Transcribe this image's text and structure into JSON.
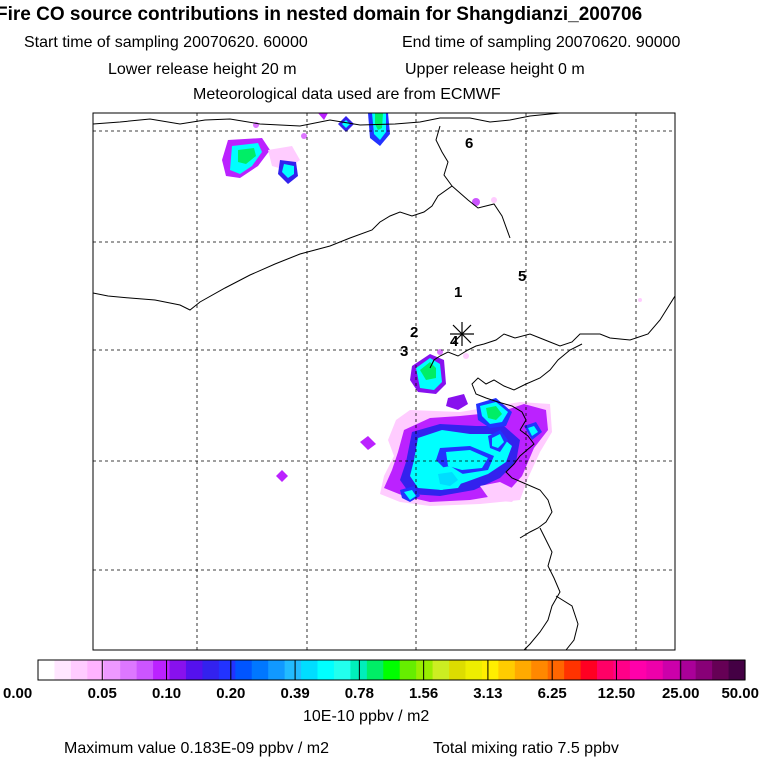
{
  "header": {
    "title": "Fire CO source contributions in nested domain for Shangdianzi_200706",
    "start_sampling": "Start time of sampling 20070620. 60000",
    "end_sampling": "End time of sampling 20070620. 90000",
    "lower_release": "Lower release height   20 m",
    "upper_release": "Upper release height    0 m",
    "met_data": "Meteorological data used are from ECMWF"
  },
  "colors": {
    "frame": "#000000",
    "grid": "#000000",
    "coast": "#000000"
  },
  "chart_data": {
    "type": "heatmap",
    "title": "Fire CO source contributions in nested domain for Shangdianzi_200706",
    "units": "10E-10 ppbv / m2",
    "legend_ticks": [
      "0.00",
      "0.05",
      "0.10",
      "0.20",
      "0.39",
      "0.78",
      "1.56",
      "3.13",
      "6.25",
      "12.50",
      "25.00",
      "50.00"
    ],
    "legend_colors": [
      "#ffffff",
      "#ffe6ff",
      "#ffccff",
      "#ffb3ff",
      "#ee99ff",
      "#dd77ff",
      "#cc55ff",
      "#bb22ff",
      "#8811ee",
      "#5511ee",
      "#3322ee",
      "#2233ff",
      "#0055ff",
      "#0077ff",
      "#1199ff",
      "#22bbff",
      "#00ddff",
      "#00ffff",
      "#22ffee",
      "#00eebb",
      "#00ee66",
      "#00ff00",
      "#66ee00",
      "#99ee00",
      "#ccee22",
      "#dddd00",
      "#eeee00",
      "#ffee00",
      "#ffcc00",
      "#ffaa00",
      "#ff8800",
      "#ff6600",
      "#ff3300",
      "#ff0022",
      "#ff0066",
      "#ff0088",
      "#ff00aa",
      "#ee00aa",
      "#cc00aa",
      "#aa0099",
      "#880077",
      "#660055",
      "#440044"
    ],
    "markers": [
      {
        "label": "1"
      },
      {
        "label": "2"
      },
      {
        "label": "3"
      },
      {
        "label": "4"
      },
      {
        "label": "5"
      },
      {
        "label": "6"
      }
    ],
    "receptor_symbol": "asterisk",
    "max_value": "Maximum value  0.183E-09 ppbv / m2",
    "total_mixing_ratio": "Total mixing ratio        7.5 ppbv"
  }
}
